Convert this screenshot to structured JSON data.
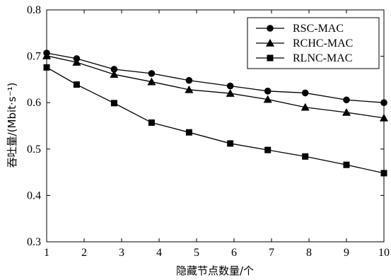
{
  "chart_data": {
    "type": "line",
    "xlabel": "隐藏节点数量/个",
    "ylabel": "吞吐量/(Mbit·s⁻¹)",
    "xlim": [
      1,
      10
    ],
    "ylim": [
      0.3,
      0.8
    ],
    "xticks": [
      1,
      2,
      3,
      4,
      5,
      6,
      7,
      8,
      9,
      10
    ],
    "yticks": [
      0.3,
      0.4,
      0.5,
      0.6,
      0.7,
      0.8
    ],
    "ytick_labels": [
      "0.3",
      "0.4",
      "0.5",
      "0.6",
      "0.7",
      "0.8"
    ],
    "grid": false,
    "legend_position": "top-right",
    "series": [
      {
        "name": "RSC-MAC",
        "marker": "circle",
        "x": [
          1,
          1.8,
          2.8,
          3.8,
          4.8,
          5.9,
          6.9,
          7.9,
          9,
          10
        ],
        "y": [
          0.707,
          0.695,
          0.672,
          0.663,
          0.648,
          0.636,
          0.625,
          0.621,
          0.606,
          0.6
        ]
      },
      {
        "name": "RCHC-MAC",
        "marker": "triangle",
        "x": [
          1,
          1.8,
          2.8,
          3.8,
          4.8,
          5.9,
          6.9,
          7.9,
          9,
          10
        ],
        "y": [
          0.701,
          0.687,
          0.661,
          0.645,
          0.628,
          0.62,
          0.607,
          0.59,
          0.579,
          0.567
        ]
      },
      {
        "name": "RLNC-MAC",
        "marker": "square",
        "x": [
          1,
          1.8,
          2.8,
          3.8,
          4.8,
          5.9,
          6.9,
          7.9,
          9,
          10
        ],
        "y": [
          0.676,
          0.639,
          0.599,
          0.557,
          0.536,
          0.512,
          0.498,
          0.484,
          0.466,
          0.448
        ]
      }
    ]
  },
  "colors": {
    "line": "#000000",
    "background": "#ffffff"
  }
}
